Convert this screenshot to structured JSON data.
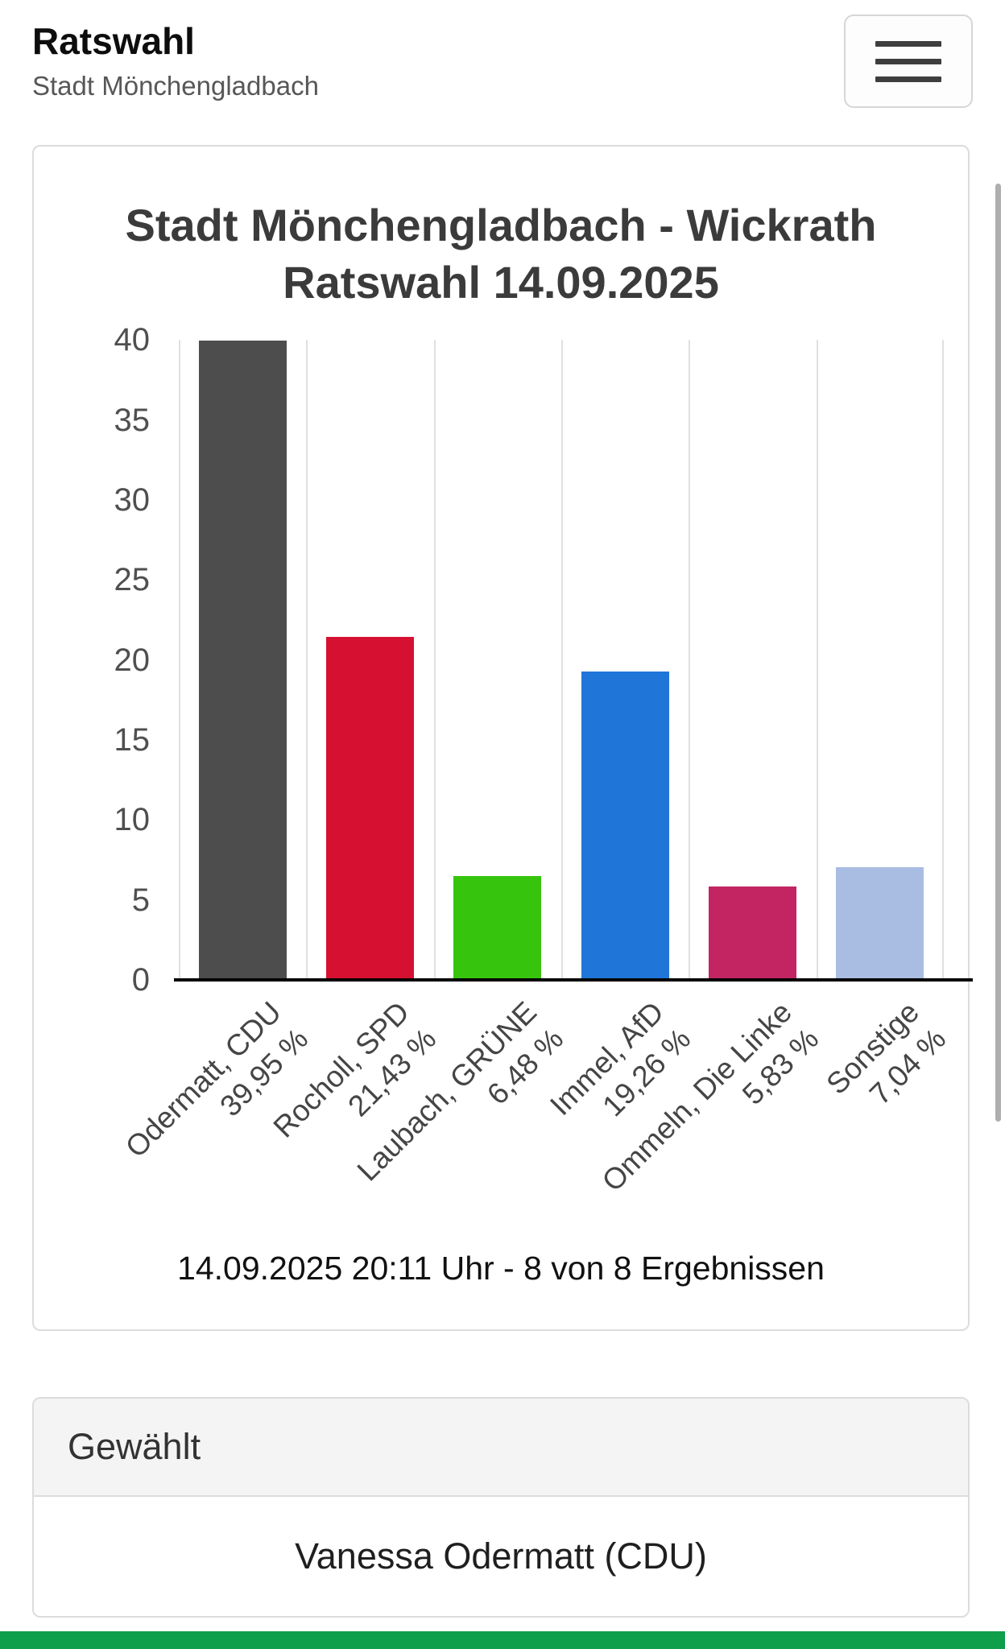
{
  "header": {
    "title": "Ratswahl",
    "subtitle": "Stadt Mönchengladbach",
    "menu_icon": "hamburger-icon"
  },
  "chart_card": {
    "title_line1": "Stadt Mönchengladbach - Wickrath",
    "title_line2": "Ratswahl 14.09.2025",
    "caption": "14.09.2025 20:11 Uhr - 8 von 8 Ergebnissen"
  },
  "chart_data": {
    "type": "bar",
    "title": "Stadt Mönchengladbach - Wickrath Ratswahl 14.09.2025",
    "categories": [
      "Odermatt, CDU",
      "Rocholl, SPD",
      "Laubach, GRÜNE",
      "Immel, AfD",
      "Ommeln, Die Linke",
      "Sonstige"
    ],
    "values": [
      39.95,
      21.43,
      6.48,
      19.26,
      5.83,
      7.04
    ],
    "value_labels": [
      "39,95 %",
      "21,43 %",
      "6,48 %",
      "19,26 %",
      "5,83 %",
      "7,04 %"
    ],
    "bar_colors": [
      "#4d4d4d",
      "#d61031",
      "#37c40d",
      "#1f76d8",
      "#c22562",
      "#a9bce2"
    ],
    "ylim": [
      0,
      40
    ],
    "yticks": [
      0,
      5,
      10,
      15,
      20,
      25,
      30,
      35,
      40
    ],
    "xlabel": "",
    "ylabel": "",
    "grid": "vertical-category-separators",
    "legend": "none"
  },
  "result_card": {
    "header": "Gewählt",
    "value": "Vanessa Odermatt (CDU)"
  },
  "footer": {
    "accent_color": "#0f9e4a"
  }
}
